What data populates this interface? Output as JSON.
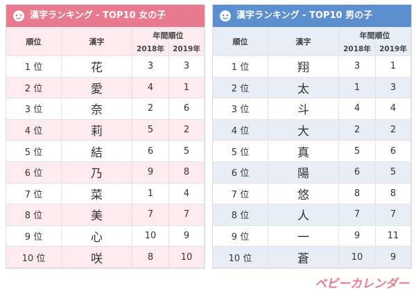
{
  "tables": [
    {
      "title": "漢字ランキング - TOP10 女の子",
      "columns": [
        "順位",
        "漢字",
        "年間順位",
        "2018年",
        "2019年"
      ],
      "rows": [
        [
          "1 位",
          "花",
          3,
          3
        ],
        [
          "2 位",
          "愛",
          4,
          1
        ],
        [
          "3 位",
          "奈",
          2,
          6
        ],
        [
          "4 位",
          "莉",
          5,
          2
        ],
        [
          "5 位",
          "結",
          6,
          5
        ],
        [
          "6 位",
          "乃",
          9,
          8
        ],
        [
          "7 位",
          "菜",
          1,
          4
        ],
        [
          "8 位",
          "美",
          7,
          7
        ],
        [
          "9 位",
          "心",
          10,
          9
        ],
        [
          "10 位",
          "咲",
          8,
          10
        ]
      ]
    },
    {
      "title": "漢字ランキング - TOP10 男の子",
      "columns": [
        "順位",
        "漢字",
        "年間順位",
        "2018年",
        "2019年"
      ],
      "rows": [
        [
          "1 位",
          "翔",
          3,
          1
        ],
        [
          "2 位",
          "太",
          1,
          3
        ],
        [
          "3 位",
          "斗",
          4,
          4
        ],
        [
          "4 位",
          "大",
          2,
          2
        ],
        [
          "5 位",
          "真",
          5,
          6
        ],
        [
          "6 位",
          "陽",
          6,
          5
        ],
        [
          "7 位",
          "悠",
          8,
          8
        ],
        [
          "8 位",
          "人",
          7,
          7
        ],
        [
          "9 位",
          "一",
          9,
          11
        ],
        [
          "10 位",
          "蒼",
          10,
          9
        ]
      ]
    }
  ],
  "logo": "ベビーカレンダー"
}
